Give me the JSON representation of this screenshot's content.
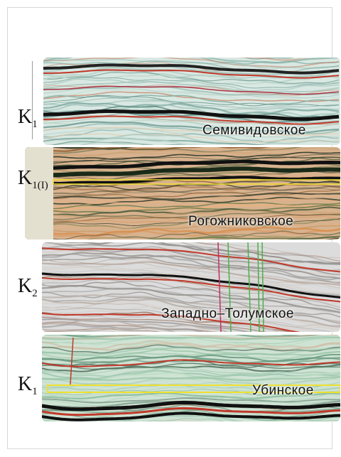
{
  "panels": [
    {
      "horizon_main": "K",
      "horizon_sub": "1",
      "field": "Семивидовское"
    },
    {
      "horizon_main": "K",
      "horizon_sub": "1(I)",
      "field": "Рогожниковское"
    },
    {
      "horizon_main": "K",
      "horizon_sub": "2",
      "field": "Западно–Толумское"
    },
    {
      "horizon_main": "K",
      "horizon_sub": "1",
      "field": "Убинское"
    }
  ],
  "colors": {
    "panel1_bg": "#d9e8e2",
    "panel2_bg": "#d8b28e",
    "panel3_bg": "#dcdcdc",
    "panel4_bg": "#cfe3d4",
    "reflector_red": "#c0392b",
    "reflector_black": "#111111",
    "highlight_yellow": "#f0e030"
  }
}
